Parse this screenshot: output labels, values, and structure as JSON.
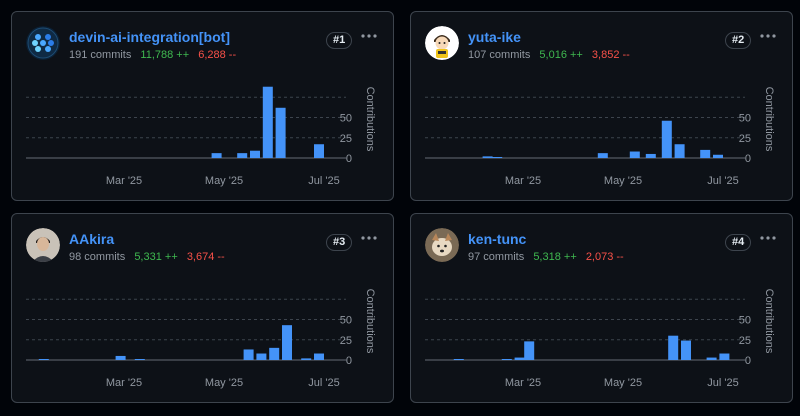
{
  "contributors": [
    {
      "rank": "#1",
      "name": "devin-ai-integration[bot]",
      "commits": "191 commits",
      "additions": "11,788 ++",
      "deletions": "6,288 --",
      "avatar_icon": "devin-logo-icon",
      "bars": [
        {
          "x": 0.58,
          "v": 6
        },
        {
          "x": 0.66,
          "v": 6
        },
        {
          "x": 0.7,
          "v": 9
        },
        {
          "x": 0.74,
          "v": 88
        },
        {
          "x": 0.78,
          "v": 62
        },
        {
          "x": 0.9,
          "v": 17
        }
      ]
    },
    {
      "rank": "#2",
      "name": "yuta-ike",
      "commits": "107 commits",
      "additions": "5,016 ++",
      "deletions": "3,852 --",
      "avatar_icon": "cartoon-avatar-icon",
      "bars": [
        {
          "x": 0.18,
          "v": 2
        },
        {
          "x": 0.21,
          "v": 1
        },
        {
          "x": 0.54,
          "v": 6
        },
        {
          "x": 0.64,
          "v": 8
        },
        {
          "x": 0.69,
          "v": 5
        },
        {
          "x": 0.74,
          "v": 46
        },
        {
          "x": 0.78,
          "v": 17
        },
        {
          "x": 0.86,
          "v": 10
        },
        {
          "x": 0.9,
          "v": 4
        }
      ]
    },
    {
      "rank": "#3",
      "name": "AAkira",
      "commits": "98 commits",
      "additions": "5,331 ++",
      "deletions": "3,674 --",
      "avatar_icon": "person-photo-icon",
      "bars": [
        {
          "x": 0.04,
          "v": 1
        },
        {
          "x": 0.28,
          "v": 5
        },
        {
          "x": 0.34,
          "v": 1
        },
        {
          "x": 0.68,
          "v": 13
        },
        {
          "x": 0.72,
          "v": 8
        },
        {
          "x": 0.76,
          "v": 15
        },
        {
          "x": 0.8,
          "v": 43
        },
        {
          "x": 0.86,
          "v": 2
        },
        {
          "x": 0.9,
          "v": 8
        }
      ]
    },
    {
      "rank": "#4",
      "name": "ken-tunc",
      "commits": "97 commits",
      "additions": "5,318 ++",
      "deletions": "2,073 --",
      "avatar_icon": "dog-photo-icon",
      "bars": [
        {
          "x": 0.09,
          "v": 1
        },
        {
          "x": 0.24,
          "v": 1
        },
        {
          "x": 0.28,
          "v": 3
        },
        {
          "x": 0.31,
          "v": 23
        },
        {
          "x": 0.76,
          "v": 30
        },
        {
          "x": 0.8,
          "v": 24
        },
        {
          "x": 0.88,
          "v": 3
        },
        {
          "x": 0.92,
          "v": 8
        }
      ]
    }
  ],
  "axis": {
    "y_title": "Contributions",
    "y_ticks": [
      "0",
      "25",
      "50"
    ],
    "x_ticks": [
      "Mar '25",
      "May '25",
      "Jul '25"
    ],
    "y_max": 100
  },
  "colors": {
    "bar": "#4493f8",
    "axis_text": "#9198a1",
    "grid": "#3d444d",
    "additions": "#3fb950",
    "deletions": "#f85149"
  }
}
